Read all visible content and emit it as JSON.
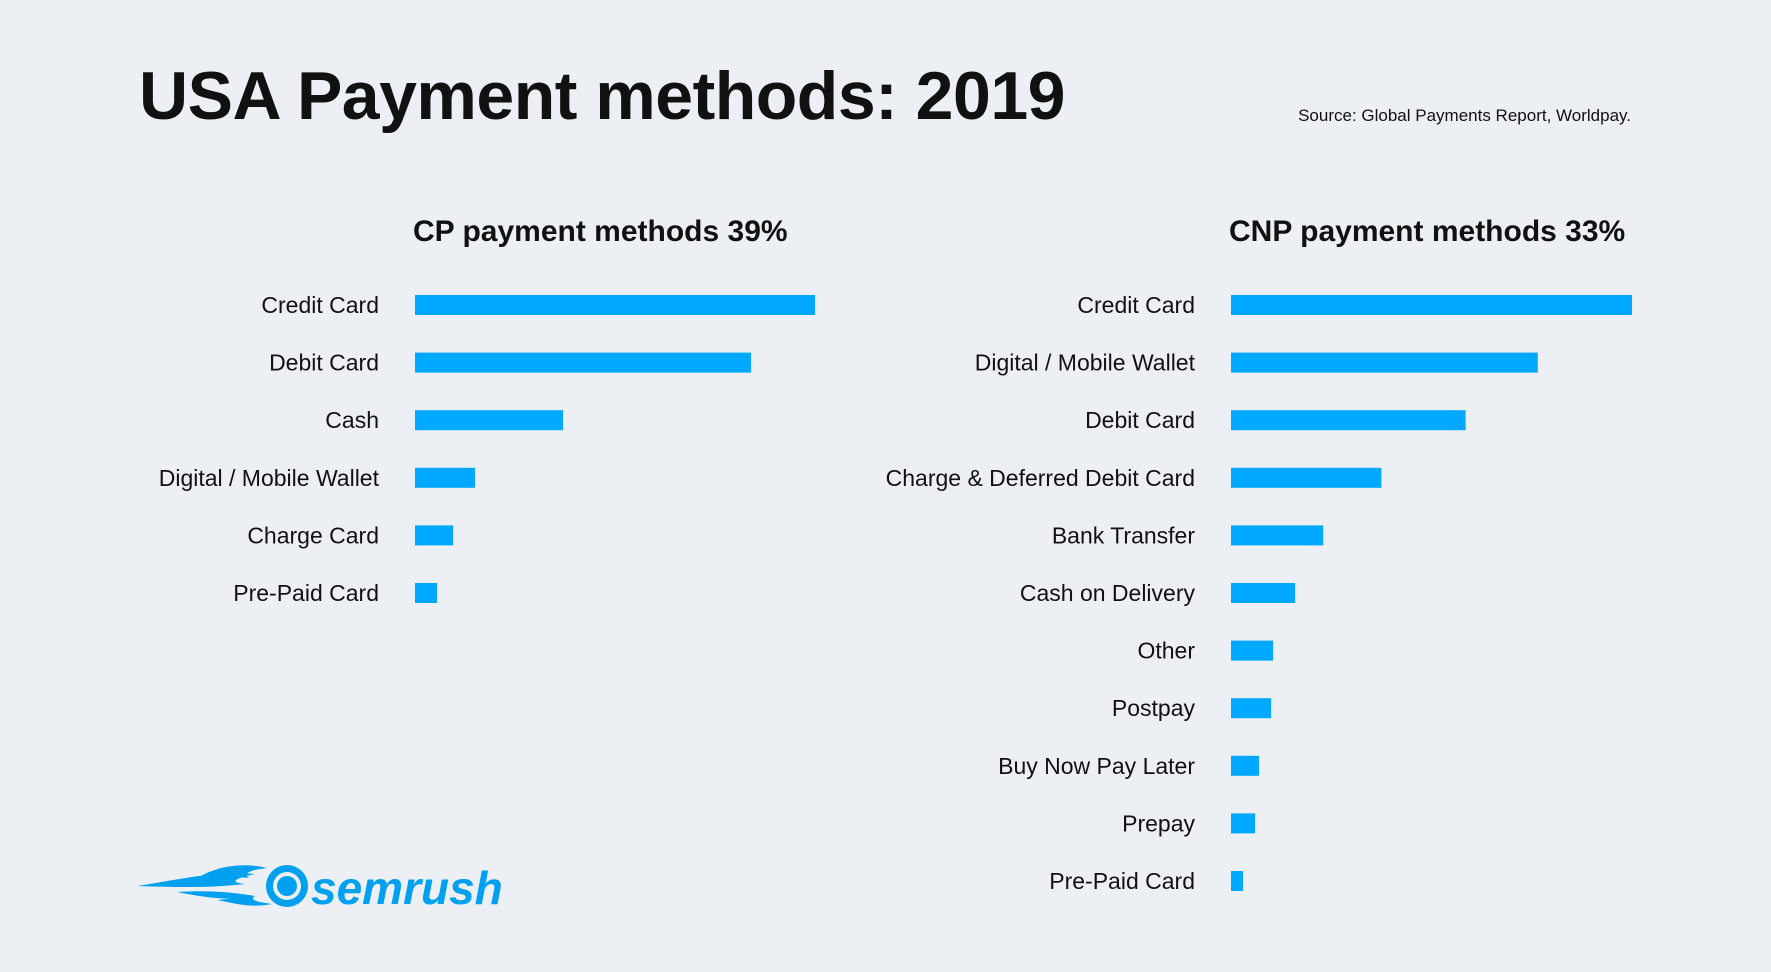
{
  "page": {
    "title": "USA Payment methods: 2019",
    "source": "Source: Global Payments Report, Worldpay."
  },
  "brand": {
    "name": "semrush",
    "icon": "semrush-comet-logo",
    "color": "#00a0f0"
  },
  "colors": {
    "bar": "#00a8ff",
    "background": "#ecf0f5",
    "text": "#111111"
  },
  "chart_data": [
    {
      "type": "bar",
      "orientation": "horizontal",
      "title": "CP payment methods 39%",
      "categories": [
        "Credit Card",
        "Debit Card",
        "Cash",
        "Digital / Mobile Wallet",
        "Charge Card",
        "Pre-Paid Card"
      ],
      "values": [
        100,
        84,
        37,
        15,
        9.5,
        5.5
      ],
      "grid": false,
      "legend": "none"
    },
    {
      "type": "bar",
      "orientation": "horizontal",
      "title": "CNP payment methods 33%",
      "categories": [
        "Credit Card",
        "Digital / Mobile Wallet",
        "Debit Card",
        "Charge & Deferred Debit Card",
        "Bank Transfer",
        "Cash on Delivery",
        "Other",
        "Postpay",
        "Buy Now Pay Later",
        "Prepay",
        "Pre-Paid Card"
      ],
      "values": [
        100,
        76.5,
        58.5,
        37.5,
        23,
        16,
        10.5,
        10,
        7,
        6,
        3
      ],
      "grid": false,
      "legend": "none"
    }
  ]
}
